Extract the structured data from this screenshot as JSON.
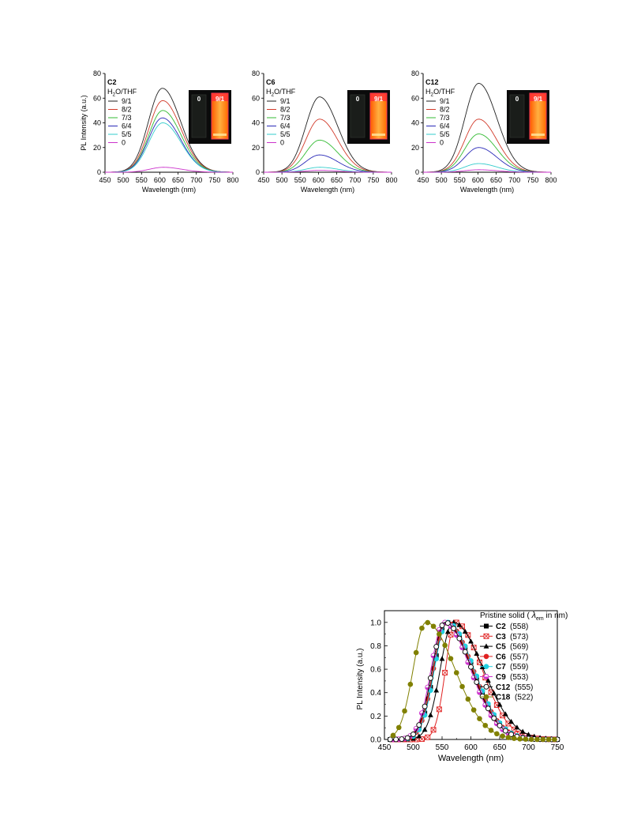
{
  "chart_data": [
    {
      "type": "line",
      "panel_label": "C2",
      "legend_title": "H2O/THF",
      "xlabel": "Wavelength (nm)",
      "ylabel": "PL Intensity (a.u.)",
      "xlim": [
        450,
        800
      ],
      "ylim": [
        0,
        80
      ],
      "xticks": [
        450,
        500,
        550,
        600,
        650,
        700,
        750,
        800
      ],
      "yticks": [
        0,
        20,
        40,
        60,
        80
      ],
      "inset": {
        "left_label": "0",
        "right_label": "9/1"
      },
      "series": [
        {
          "name": "9/1",
          "peak_x": 607,
          "peak_y": 68,
          "color": "#222222"
        },
        {
          "name": "8/2",
          "peak_x": 608,
          "peak_y": 58,
          "color": "#d23a2a"
        },
        {
          "name": "7/3",
          "peak_x": 608,
          "peak_y": 50,
          "color": "#33bb33"
        },
        {
          "name": "6/4",
          "peak_x": 607,
          "peak_y": 44,
          "color": "#2a2ab8"
        },
        {
          "name": "5/5",
          "peak_x": 608,
          "peak_y": 40,
          "color": "#33cccc"
        },
        {
          "name": "0",
          "peak_x": 610,
          "peak_y": 4,
          "color": "#cc33cc"
        }
      ]
    },
    {
      "type": "line",
      "panel_label": "C6",
      "legend_title": "H2O/THF",
      "xlabel": "Wavelength (nm)",
      "ylabel": "",
      "xlim": [
        450,
        800
      ],
      "ylim": [
        0,
        80
      ],
      "xticks": [
        450,
        500,
        550,
        600,
        650,
        700,
        750,
        800
      ],
      "yticks": [
        0,
        20,
        40,
        60,
        80
      ],
      "inset": {
        "left_label": "0",
        "right_label": "9/1"
      },
      "series": [
        {
          "name": "9/1",
          "peak_x": 603,
          "peak_y": 61,
          "color": "#222222"
        },
        {
          "name": "8/2",
          "peak_x": 603,
          "peak_y": 43,
          "color": "#d23a2a"
        },
        {
          "name": "7/3",
          "peak_x": 603,
          "peak_y": 26,
          "color": "#33bb33"
        },
        {
          "name": "6/4",
          "peak_x": 603,
          "peak_y": 14,
          "color": "#2a2ab8"
        },
        {
          "name": "5/5",
          "peak_x": 603,
          "peak_y": 4,
          "color": "#33cccc"
        },
        {
          "name": "0",
          "peak_x": 603,
          "peak_y": 1.5,
          "color": "#cc33cc"
        }
      ]
    },
    {
      "type": "line",
      "panel_label": "C12",
      "legend_title": "H2O/THF",
      "xlabel": "Wavelength (nm)",
      "ylabel": "",
      "xlim": [
        450,
        800
      ],
      "ylim": [
        0,
        80
      ],
      "xticks": [
        450,
        500,
        550,
        600,
        650,
        700,
        750,
        800
      ],
      "yticks": [
        0,
        20,
        40,
        60,
        80
      ],
      "inset": {
        "left_label": "0",
        "right_label": "9/1"
      },
      "series": [
        {
          "name": "9/1",
          "peak_x": 602,
          "peak_y": 72,
          "color": "#222222"
        },
        {
          "name": "8/2",
          "peak_x": 602,
          "peak_y": 43,
          "color": "#d23a2a"
        },
        {
          "name": "7/3",
          "peak_x": 602,
          "peak_y": 31,
          "color": "#33bb33"
        },
        {
          "name": "6/4",
          "peak_x": 602,
          "peak_y": 20,
          "color": "#2a2ab8"
        },
        {
          "name": "5/5",
          "peak_x": 602,
          "peak_y": 7,
          "color": "#33cccc"
        },
        {
          "name": "0",
          "peak_x": 602,
          "peak_y": 2,
          "color": "#cc33cc"
        }
      ]
    },
    {
      "type": "line",
      "panel_label": "",
      "legend_title": "Pristine solid (λem in nm)",
      "xlabel": "Wavelength (nm)",
      "ylabel": "PL Intensity (a.u.)",
      "xlim": [
        450,
        750
      ],
      "ylim": [
        0,
        1.1
      ],
      "xticks": [
        450,
        500,
        550,
        600,
        650,
        700,
        750
      ],
      "yticks": [
        "0.0",
        "0.2",
        "0.4",
        "0.6",
        "0.8",
        "1.0"
      ],
      "series": [
        {
          "name": "C2",
          "peak_label": "(558)",
          "peak_x": 558,
          "color": "#000000",
          "marker": "square-filled"
        },
        {
          "name": "C3",
          "peak_label": "(573)",
          "peak_x": 573,
          "color": "#e02020",
          "marker": "square-open-cross"
        },
        {
          "name": "C5",
          "peak_label": "(569)",
          "peak_x": 569,
          "color": "#000000",
          "marker": "triangle-filled"
        },
        {
          "name": "C6",
          "peak_label": "(557)",
          "peak_x": 557,
          "color": "#e02020",
          "marker": "circle-filled"
        },
        {
          "name": "C7",
          "peak_label": "(559)",
          "peak_x": 559,
          "color": "#22d0e0",
          "marker": "circle-filled"
        },
        {
          "name": "C9",
          "peak_label": "(553)",
          "peak_x": 553,
          "color": "#cc33cc",
          "marker": "circle-half"
        },
        {
          "name": "C12",
          "peak_label": "(555)",
          "peak_x": 555,
          "color": "#000000",
          "marker": "circle-open"
        },
        {
          "name": "C18",
          "peak_label": "(522)",
          "peak_x": 522,
          "color": "#808000",
          "marker": "circle-filled"
        }
      ]
    }
  ]
}
